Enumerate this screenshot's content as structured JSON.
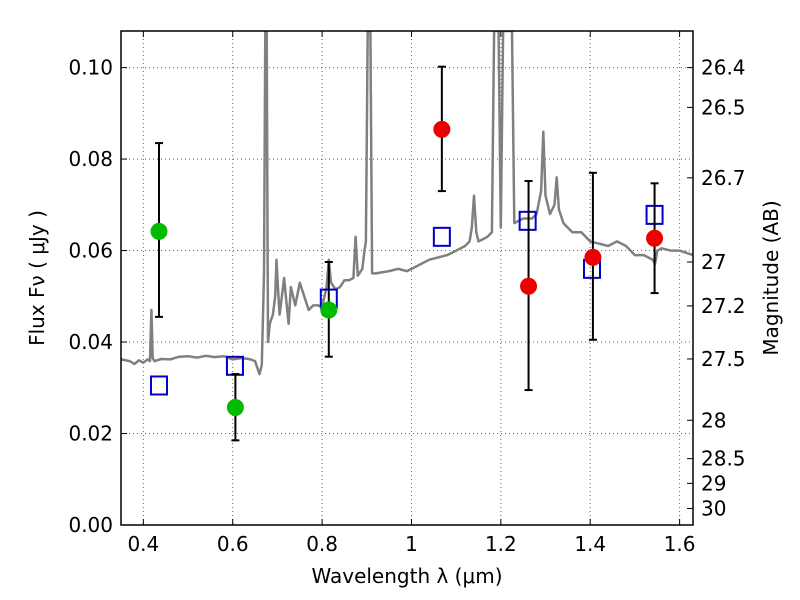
{
  "chart_data": {
    "type": "scatter",
    "title": "",
    "xlabel": "Wavelength  λ (μm)",
    "ylabel": "Flux  Fν  ( μJy )",
    "y2label": "Magnitude (AB)",
    "xlim": [
      0.35,
      1.63
    ],
    "ylim": [
      0.0,
      0.108
    ],
    "grid": true,
    "x_ticks": [
      0.4,
      0.6,
      0.8,
      1.0,
      1.2,
      1.4,
      1.6
    ],
    "x_tick_labels": [
      "0.4",
      "0.6",
      "0.8",
      "1",
      "1.2",
      "1.4",
      "1.6"
    ],
    "y_ticks": [
      0.0,
      0.02,
      0.04,
      0.06,
      0.08,
      0.1
    ],
    "y_tick_labels": [
      "0.00",
      "0.02",
      "0.04",
      "0.06",
      "0.08",
      "0.10"
    ],
    "y2_ticks": [
      {
        "label": "26.4",
        "flux": 0.1
      },
      {
        "label": "26.5",
        "flux": 0.0913
      },
      {
        "label": "26.7",
        "flux": 0.0759
      },
      {
        "label": "27",
        "flux": 0.0575
      },
      {
        "label": "27.2",
        "flux": 0.0479
      },
      {
        "label": "27.5",
        "flux": 0.0363
      },
      {
        "label": "28",
        "flux": 0.0229
      },
      {
        "label": "28.5",
        "flux": 0.0145
      },
      {
        "label": "29",
        "flux": 0.0091
      },
      {
        "label": "30",
        "flux": 0.0036
      }
    ],
    "series": [
      {
        "kind": "spectrum",
        "color": "#808080",
        "points": [
          [
            0.35,
            0.0362
          ],
          [
            0.37,
            0.0358
          ],
          [
            0.38,
            0.0352
          ],
          [
            0.39,
            0.036
          ],
          [
            0.4,
            0.0355
          ],
          [
            0.41,
            0.0362
          ],
          [
            0.415,
            0.0358
          ],
          [
            0.418,
            0.047
          ],
          [
            0.421,
            0.0365
          ],
          [
            0.425,
            0.0358
          ],
          [
            0.44,
            0.0363
          ],
          [
            0.46,
            0.0362
          ],
          [
            0.48,
            0.0368
          ],
          [
            0.5,
            0.0369
          ],
          [
            0.52,
            0.0366
          ],
          [
            0.54,
            0.037
          ],
          [
            0.56,
            0.0367
          ],
          [
            0.58,
            0.0369
          ],
          [
            0.6,
            0.0362
          ],
          [
            0.62,
            0.0365
          ],
          [
            0.64,
            0.0362
          ],
          [
            0.65,
            0.0358
          ],
          [
            0.66,
            0.033
          ],
          [
            0.665,
            0.035
          ],
          [
            0.67,
            0.055
          ],
          [
            0.673,
            0.108
          ],
          [
            0.676,
            0.108
          ],
          [
            0.679,
            0.04
          ],
          [
            0.683,
            0.044
          ],
          [
            0.69,
            0.046
          ],
          [
            0.695,
            0.05
          ],
          [
            0.698,
            0.058
          ],
          [
            0.701,
            0.052
          ],
          [
            0.705,
            0.046
          ],
          [
            0.71,
            0.05
          ],
          [
            0.715,
            0.054
          ],
          [
            0.72,
            0.049
          ],
          [
            0.725,
            0.044
          ],
          [
            0.73,
            0.052
          ],
          [
            0.74,
            0.048
          ],
          [
            0.75,
            0.053
          ],
          [
            0.76,
            0.05
          ],
          [
            0.77,
            0.047
          ],
          [
            0.78,
            0.048
          ],
          [
            0.79,
            0.048
          ],
          [
            0.8,
            0.0478
          ],
          [
            0.81,
            0.052
          ],
          [
            0.815,
            0.058
          ],
          [
            0.82,
            0.053
          ],
          [
            0.83,
            0.0515
          ],
          [
            0.84,
            0.052
          ],
          [
            0.85,
            0.0535
          ],
          [
            0.86,
            0.0535
          ],
          [
            0.87,
            0.054
          ],
          [
            0.875,
            0.063
          ],
          [
            0.88,
            0.0545
          ],
          [
            0.89,
            0.056
          ],
          [
            0.895,
            0.06
          ],
          [
            0.898,
            0.062
          ],
          [
            0.902,
            0.108
          ],
          [
            0.908,
            0.108
          ],
          [
            0.912,
            0.055
          ],
          [
            0.92,
            0.055
          ],
          [
            0.95,
            0.0555
          ],
          [
            0.97,
            0.056
          ],
          [
            0.99,
            0.0555
          ],
          [
            1.0,
            0.056
          ],
          [
            1.02,
            0.057
          ],
          [
            1.04,
            0.058
          ],
          [
            1.06,
            0.0585
          ],
          [
            1.08,
            0.059
          ],
          [
            1.1,
            0.06
          ],
          [
            1.12,
            0.061
          ],
          [
            1.13,
            0.062
          ],
          [
            1.135,
            0.065
          ],
          [
            1.14,
            0.072
          ],
          [
            1.145,
            0.064
          ],
          [
            1.15,
            0.062
          ],
          [
            1.16,
            0.0625
          ],
          [
            1.17,
            0.063
          ],
          [
            1.18,
            0.064
          ],
          [
            1.185,
            0.108
          ],
          [
            1.195,
            0.108
          ],
          [
            1.2,
            0.065
          ],
          [
            1.205,
            0.108
          ],
          [
            1.225,
            0.108
          ],
          [
            1.23,
            0.066
          ],
          [
            1.25,
            0.067
          ],
          [
            1.27,
            0.067
          ],
          [
            1.28,
            0.068
          ],
          [
            1.29,
            0.073
          ],
          [
            1.295,
            0.086
          ],
          [
            1.3,
            0.072
          ],
          [
            1.31,
            0.068
          ],
          [
            1.32,
            0.07
          ],
          [
            1.325,
            0.076
          ],
          [
            1.33,
            0.069
          ],
          [
            1.34,
            0.066
          ],
          [
            1.36,
            0.064
          ],
          [
            1.38,
            0.064
          ],
          [
            1.4,
            0.062
          ],
          [
            1.42,
            0.0615
          ],
          [
            1.44,
            0.061
          ],
          [
            1.46,
            0.062
          ],
          [
            1.48,
            0.061
          ],
          [
            1.5,
            0.059
          ],
          [
            1.52,
            0.059
          ],
          [
            1.54,
            0.058
          ],
          [
            1.545,
            0.057
          ],
          [
            1.55,
            0.06
          ],
          [
            1.56,
            0.0605
          ],
          [
            1.58,
            0.06
          ],
          [
            1.6,
            0.06
          ],
          [
            1.63,
            0.059
          ]
        ]
      },
      {
        "kind": "open-squares",
        "color": "#0000cc",
        "points": [
          [
            0.435,
            0.0305
          ],
          [
            0.605,
            0.0348
          ],
          [
            0.815,
            0.0495
          ],
          [
            1.068,
            0.063
          ],
          [
            1.26,
            0.0665
          ],
          [
            1.404,
            0.056
          ],
          [
            1.544,
            0.0678
          ]
        ]
      },
      {
        "kind": "filled-circles",
        "color": "#00bb00",
        "points": [
          {
            "x": 0.435,
            "y": 0.0642,
            "ylo": 0.0455,
            "yhi": 0.0835
          },
          {
            "x": 0.606,
            "y": 0.0257,
            "ylo": 0.0185,
            "yhi": 0.033
          },
          {
            "x": 0.815,
            "y": 0.047,
            "ylo": 0.0368,
            "yhi": 0.0575
          }
        ]
      },
      {
        "kind": "filled-circles",
        "color": "#ee0000",
        "points": [
          {
            "x": 1.068,
            "y": 0.0865,
            "ylo": 0.073,
            "yhi": 0.1002
          },
          {
            "x": 1.262,
            "y": 0.0522,
            "ylo": 0.0295,
            "yhi": 0.0752
          },
          {
            "x": 1.406,
            "y": 0.0585,
            "ylo": 0.0405,
            "yhi": 0.077
          },
          {
            "x": 1.544,
            "y": 0.0627,
            "ylo": 0.0507,
            "yhi": 0.0747
          }
        ]
      }
    ]
  }
}
